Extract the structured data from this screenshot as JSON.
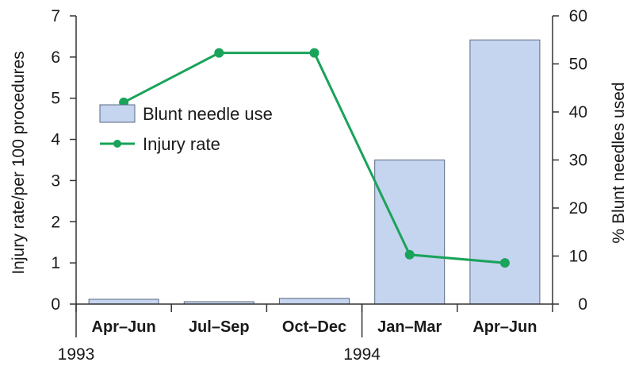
{
  "chart_data": {
    "type": "bar+line",
    "categories": [
      "Apr–Jun",
      "Jul–Sep",
      "Oct–Dec",
      "Jan–Mar",
      "Apr–Jun"
    ],
    "year_labels": [
      {
        "label": "1993",
        "category_index": 0
      },
      {
        "label": "1994",
        "category_index": 3
      }
    ],
    "series": [
      {
        "name": "Blunt needle use",
        "type": "bar",
        "axis": "right",
        "color": "#c5d4ef",
        "edge_color": "#5a6a80",
        "values": [
          1,
          0.5,
          1.2,
          30,
          55
        ]
      },
      {
        "name": "Injury rate",
        "type": "line",
        "axis": "left",
        "color": "#1aa35a",
        "values": [
          4.9,
          6.1,
          6.1,
          1.2,
          1.0
        ]
      }
    ],
    "ylabel_left": "Injury rate/per 100 procedures",
    "ylabel_right": "% Blunt needles used",
    "ylim_left": [
      0,
      7
    ],
    "ylim_right": [
      0,
      60
    ],
    "yticks_left": [
      0,
      1,
      2,
      3,
      4,
      5,
      6,
      7
    ],
    "yticks_right": [
      0,
      10,
      20,
      30,
      40,
      50,
      60
    ],
    "legend_placement": "upper-left inside plot",
    "grid": false
  }
}
